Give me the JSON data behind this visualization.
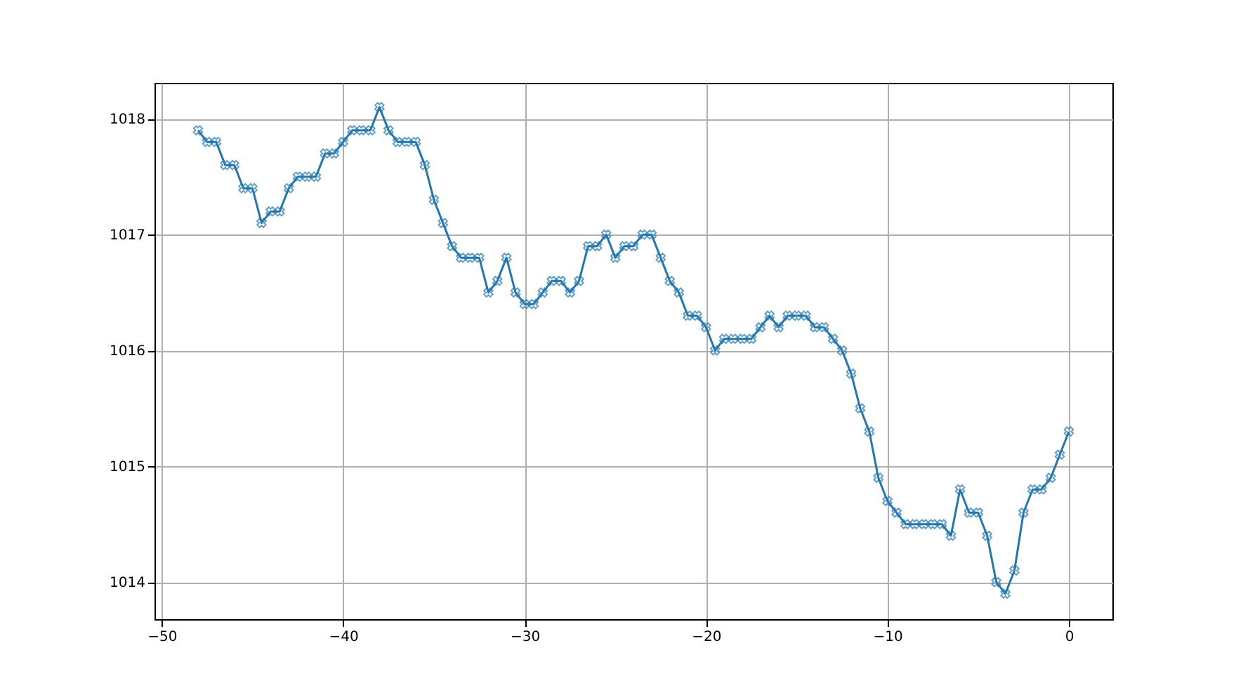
{
  "chart_data": {
    "type": "line",
    "x": [
      -48,
      -47.5,
      -47,
      -46.5,
      -46,
      -45.5,
      -45,
      -44.5,
      -44,
      -43.5,
      -43,
      -42.5,
      -42,
      -41.5,
      -41,
      -40.5,
      -40,
      -39.5,
      -39,
      -38.5,
      -38,
      -37.5,
      -37,
      -36.5,
      -36,
      -35.5,
      -35,
      -34.5,
      -34,
      -33.5,
      -33,
      -32.5,
      -32,
      -31.5,
      -31,
      -30.5,
      -30,
      -29.5,
      -29,
      -28.5,
      -28,
      -27.5,
      -27,
      -26.5,
      -26,
      -25.5,
      -25,
      -24.5,
      -24,
      -23.5,
      -23,
      -22.5,
      -22,
      -21.5,
      -21,
      -20.5,
      -20,
      -19.5,
      -19,
      -18.5,
      -18,
      -17.5,
      -17,
      -16.5,
      -16,
      -15.5,
      -15,
      -14.5,
      -14,
      -13.5,
      -13,
      -12.5,
      -12,
      -11.5,
      -11,
      -10.5,
      -10,
      -9.5,
      -9,
      -8.5,
      -8,
      -7.5,
      -7,
      -6.5,
      -6,
      -5.5,
      -5,
      -4.5,
      -4,
      -3.5,
      -3,
      -2.5,
      -2,
      -1.5,
      -1,
      -0.5,
      0
    ],
    "series": [
      {
        "color": "#1f77b4",
        "values": [
          1017.9,
          1017.8,
          1017.8,
          1017.6,
          1017.6,
          1017.4,
          1017.4,
          1017.1,
          1017.2,
          1017.2,
          1017.4,
          1017.5,
          1017.5,
          1017.5,
          1017.7,
          1017.7,
          1017.8,
          1017.9,
          1017.9,
          1017.9,
          1018.1,
          1017.9,
          1017.8,
          1017.8,
          1017.8,
          1017.6,
          1017.3,
          1017.1,
          1016.9,
          1016.8,
          1016.8,
          1016.8,
          1016.5,
          1016.6,
          1016.8,
          1016.5,
          1016.4,
          1016.4,
          1016.5,
          1016.6,
          1016.6,
          1016.5,
          1016.6,
          1016.9,
          1016.9,
          1017.0,
          1016.8,
          1016.9,
          1016.9,
          1017.0,
          1017.0,
          1016.8,
          1016.6,
          1016.5,
          1016.3,
          1016.3,
          1016.2,
          1016.0,
          1016.1,
          1016.1,
          1016.1,
          1016.1,
          1016.2,
          1016.3,
          1016.2,
          1016.3,
          1016.3,
          1016.3,
          1016.2,
          1016.2,
          1016.1,
          1016.0,
          1015.8,
          1015.5,
          1015.3,
          1014.9,
          1014.7,
          1014.6,
          1014.5,
          1014.5,
          1014.5,
          1014.5,
          1014.5,
          1014.4,
          1014.8,
          1014.6,
          1014.6,
          1014.4,
          1014.0,
          1013.9,
          1014.1,
          1014.6,
          1014.8,
          1014.8,
          1014.9,
          1015.1,
          1015.3
        ]
      }
    ],
    "xlim": [
      -50.4,
      2.4
    ],
    "ylim": [
      1013.68,
      1018.31
    ],
    "xticks": [
      -50,
      -40,
      -30,
      -20,
      -10,
      0
    ],
    "yticks": [
      1014,
      1015,
      1016,
      1017,
      1018
    ],
    "grid": true,
    "marker": "cross",
    "line_style": "solid"
  }
}
